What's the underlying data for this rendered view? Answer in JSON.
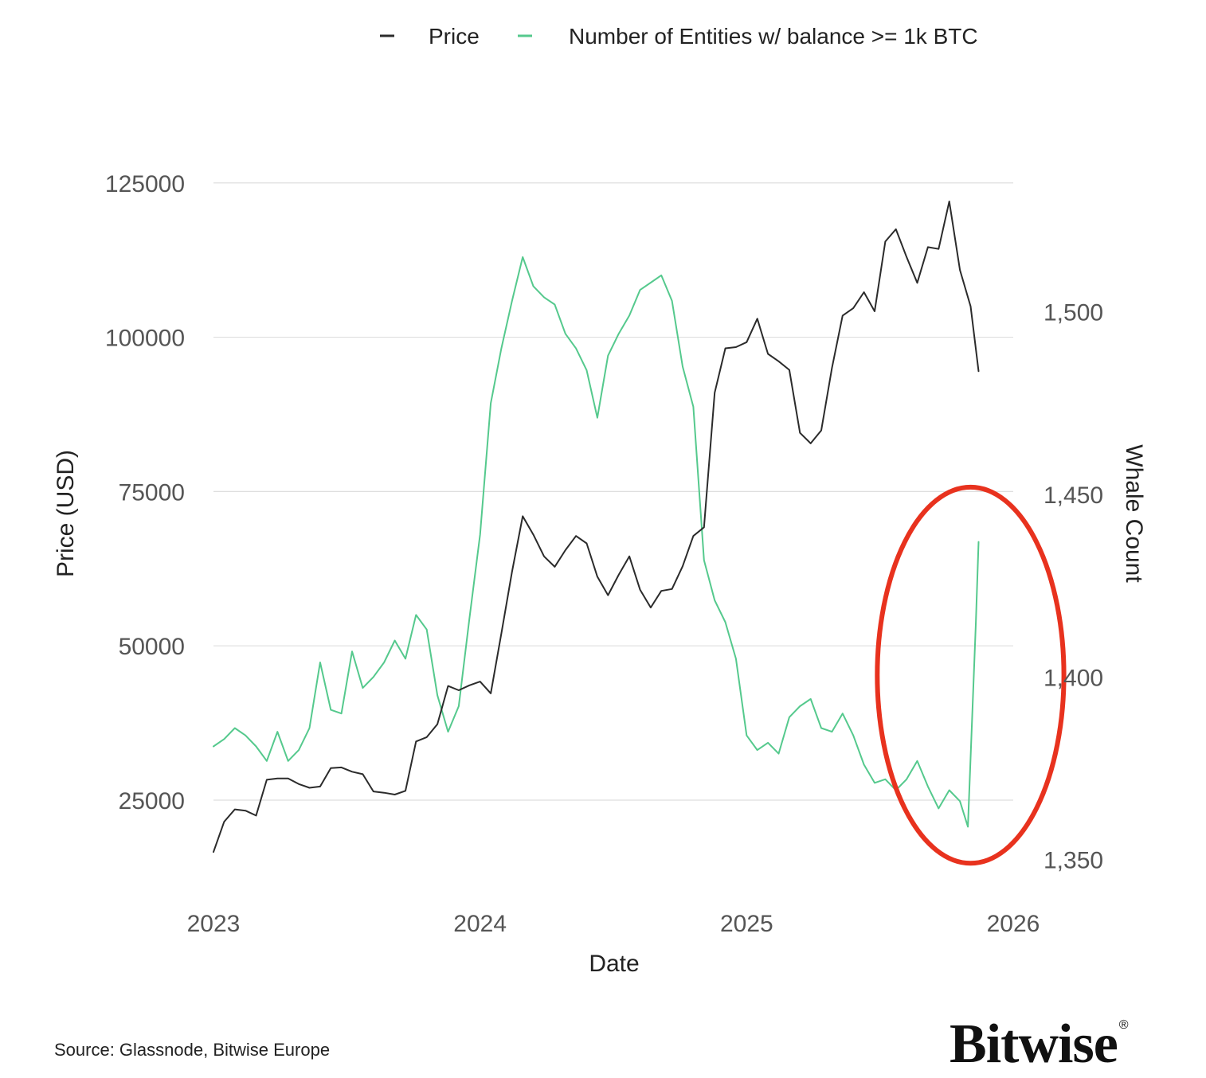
{
  "chart_data": {
    "type": "line",
    "title": "",
    "xlabel": "Date",
    "ylabel": "Price (USD)",
    "y2label": "Whale Count",
    "xlim": [
      2023.0,
      2026.0
    ],
    "ylim": [
      13000,
      126000
    ],
    "y2lim": [
      1346,
      1537
    ],
    "x_ticks": [
      2023,
      2024,
      2025,
      2026
    ],
    "x_tick_labels": [
      "2023",
      "2024",
      "2025",
      "2026"
    ],
    "y_ticks": [
      25000,
      50000,
      75000,
      100000,
      125000
    ],
    "y_tick_labels": [
      "25000",
      "50000",
      "75000",
      "100000",
      "125000"
    ],
    "y2_ticks": [
      1350,
      1400,
      1450,
      1500
    ],
    "y2_tick_labels": [
      "1,350",
      "1,400",
      "1,450",
      "1,500"
    ],
    "grid": true,
    "legend_position": "top",
    "highlight": {
      "shape": "ellipse",
      "color": "#e8321e",
      "x_center": 2025.84,
      "y2_center": 1400.5,
      "x_radius": 0.35,
      "y2_radius": 51.5
    },
    "series": [
      {
        "name": "Price",
        "axis": "left",
        "color": "#2b2b2b",
        "x": [
          2023.0,
          2023.04,
          2023.08,
          2023.12,
          2023.16,
          2023.2,
          2023.24,
          2023.28,
          2023.32,
          2023.36,
          2023.4,
          2023.44,
          2023.48,
          2023.52,
          2023.56,
          2023.6,
          2023.64,
          2023.68,
          2023.72,
          2023.76,
          2023.8,
          2023.84,
          2023.88,
          2023.92,
          2023.96,
          2024.0,
          2024.04,
          2024.08,
          2024.12,
          2024.16,
          2024.2,
          2024.24,
          2024.28,
          2024.32,
          2024.36,
          2024.4,
          2024.44,
          2024.48,
          2024.52,
          2024.56,
          2024.6,
          2024.64,
          2024.68,
          2024.72,
          2024.76,
          2024.8,
          2024.84,
          2024.88,
          2024.92,
          2024.96,
          2025.0,
          2025.04,
          2025.08,
          2025.12,
          2025.16,
          2025.2,
          2025.24,
          2025.28,
          2025.32,
          2025.36,
          2025.4,
          2025.44,
          2025.48,
          2025.52,
          2025.56,
          2025.6,
          2025.64,
          2025.68,
          2025.72,
          2025.76,
          2025.8,
          2025.84,
          2025.87
        ],
        "values": [
          16600,
          21500,
          23500,
          23300,
          22500,
          28300,
          28500,
          28500,
          27600,
          27000,
          27200,
          30200,
          30300,
          29600,
          29200,
          26400,
          26200,
          25900,
          26500,
          34500,
          35200,
          37300,
          43500,
          42800,
          43600,
          44200,
          42300,
          52000,
          62000,
          71000,
          68000,
          64500,
          62800,
          65500,
          67800,
          66600,
          61200,
          58200,
          61500,
          64500,
          59100,
          56200,
          58900,
          59200,
          62900,
          67800,
          69200,
          91000,
          98200,
          98400,
          99200,
          103000,
          97300,
          96100,
          94700,
          84500,
          82800,
          84900,
          95000,
          103500,
          104700,
          107300,
          104200,
          115500,
          117500,
          113000,
          108800,
          114600,
          114300,
          122000,
          110900,
          105000,
          94500
        ]
      },
      {
        "name": "Number of Entities w/ balance >= 1k BTC",
        "axis": "right",
        "color": "#55c98d",
        "x": [
          2023.0,
          2023.04,
          2023.08,
          2023.12,
          2023.16,
          2023.2,
          2023.24,
          2023.28,
          2023.32,
          2023.36,
          2023.4,
          2023.44,
          2023.48,
          2023.52,
          2023.56,
          2023.6,
          2023.64,
          2023.68,
          2023.72,
          2023.76,
          2023.8,
          2023.84,
          2023.88,
          2023.92,
          2023.96,
          2024.0,
          2024.04,
          2024.08,
          2024.12,
          2024.16,
          2024.2,
          2024.24,
          2024.28,
          2024.32,
          2024.36,
          2024.4,
          2024.44,
          2024.48,
          2024.52,
          2024.56,
          2024.6,
          2024.64,
          2024.68,
          2024.72,
          2024.76,
          2024.8,
          2024.84,
          2024.88,
          2024.92,
          2024.96,
          2025.0,
          2025.04,
          2025.08,
          2025.12,
          2025.16,
          2025.2,
          2025.24,
          2025.28,
          2025.32,
          2025.36,
          2025.4,
          2025.44,
          2025.48,
          2025.52,
          2025.56,
          2025.6,
          2025.64,
          2025.68,
          2025.72,
          2025.76,
          2025.8,
          2025.83,
          2025.86,
          2025.87
        ],
        "values": [
          1381,
          1383,
          1386,
          1384,
          1381,
          1377,
          1385,
          1377,
          1380,
          1386,
          1404,
          1391,
          1390,
          1407,
          1397,
          1400,
          1404,
          1410,
          1405,
          1417,
          1413,
          1395,
          1385,
          1392,
          1416,
          1439,
          1475,
          1490,
          1503,
          1515,
          1507,
          1504,
          1502,
          1494,
          1490,
          1484,
          1471,
          1488,
          1494,
          1499,
          1506,
          1508,
          1510,
          1503,
          1485,
          1474,
          1432,
          1421,
          1415,
          1405,
          1384,
          1380,
          1382,
          1379,
          1389,
          1392,
          1394,
          1386,
          1385,
          1390,
          1384,
          1376,
          1371,
          1372,
          1369,
          1372,
          1377,
          1370,
          1364,
          1369,
          1366,
          1359,
          1415,
          1437
        ]
      }
    ]
  },
  "legend": {
    "price_label": "Price",
    "whale_label": "Number of Entities w/ balance >= 1k BTC"
  },
  "footer": {
    "source": "Source: Glassnode, Bitwise Europe",
    "brand": "Bitwise",
    "brand_mark": "®"
  },
  "colors": {
    "price": "#2b2b2b",
    "whale": "#55c98d",
    "grid": "#dedede",
    "highlight": "#e8321e"
  }
}
